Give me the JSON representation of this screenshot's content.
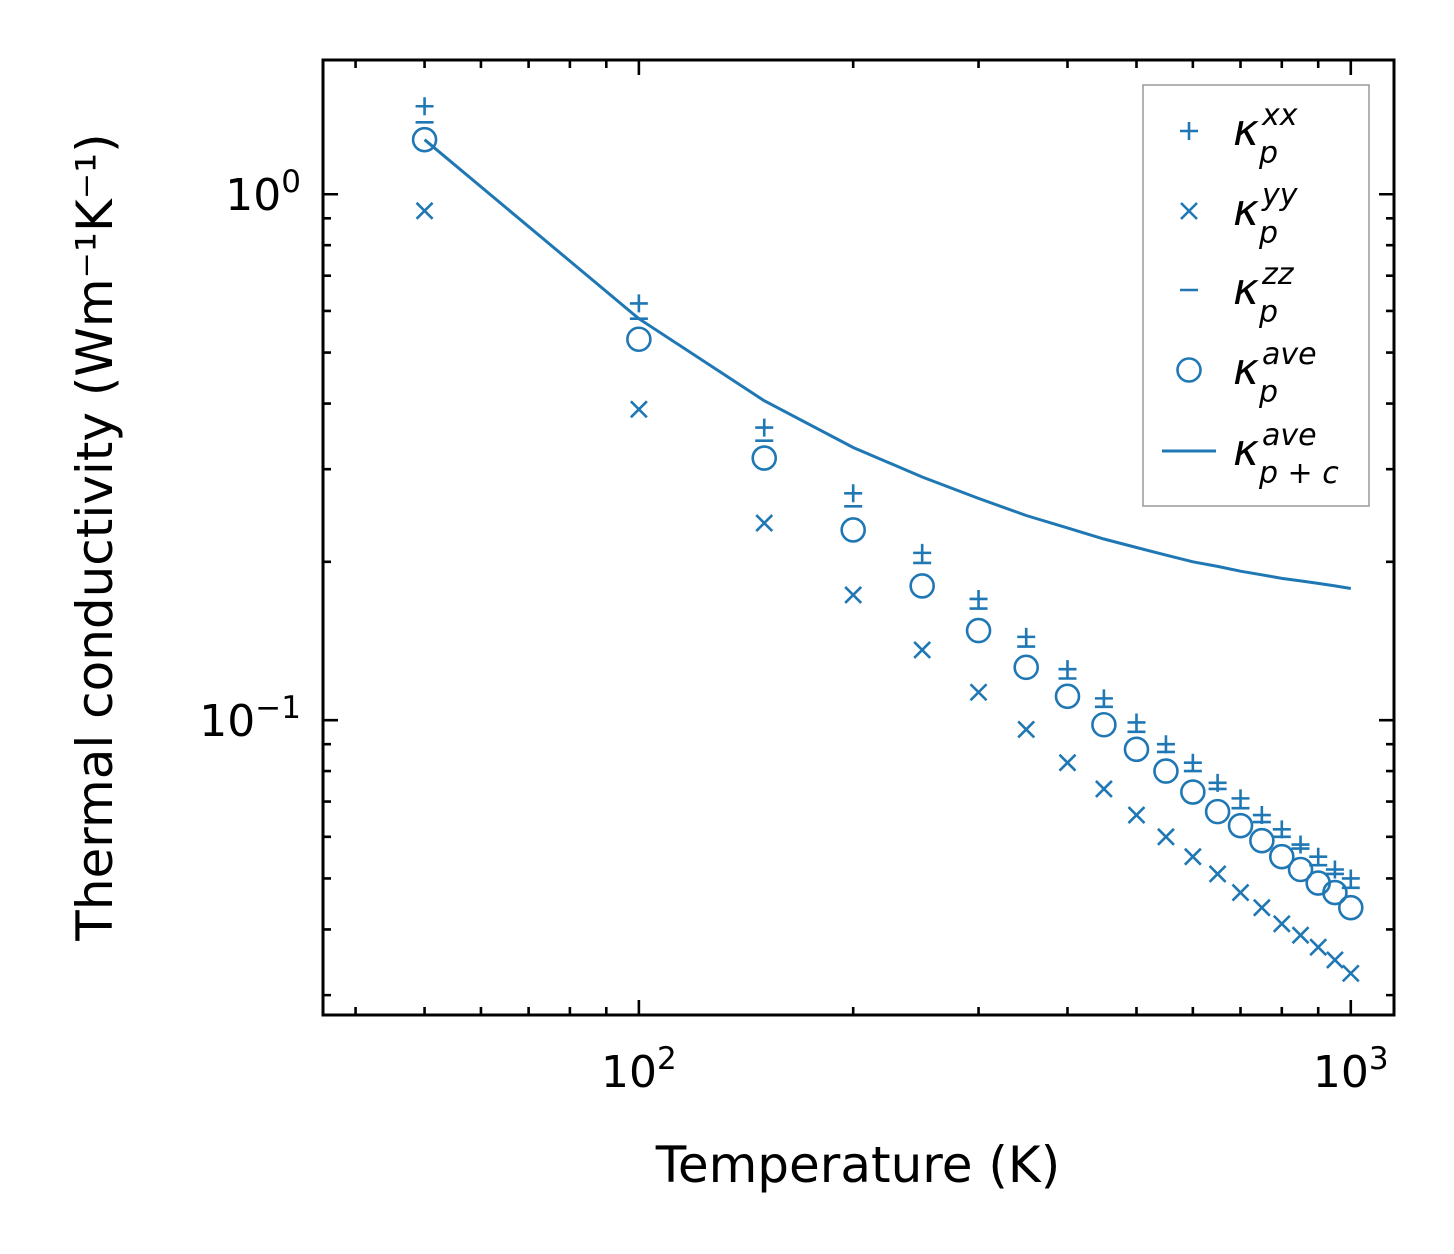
{
  "chart_data": {
    "type": "scatter",
    "xscale": "log",
    "yscale": "log",
    "xlabel": "Temperature (K)",
    "ylabel": "Thermal conductivity (Wm⁻¹K⁻¹)",
    "xlim": [
      36,
      1150
    ],
    "ylim": [
      0.0275,
      1.8
    ],
    "xticks": [
      {
        "value": 100,
        "base": "10",
        "exp": "2"
      },
      {
        "value": 1000,
        "base": "10",
        "exp": "3"
      }
    ],
    "yticks": [
      {
        "value": 0.1,
        "base": "10",
        "exp": "−1"
      },
      {
        "value": 1,
        "base": "10",
        "exp": "0"
      }
    ],
    "grid": false,
    "legend_position": "top-right",
    "color": "#1f77b4",
    "x": [
      50,
      100,
      150,
      200,
      250,
      300,
      350,
      400,
      450,
      500,
      550,
      600,
      650,
      700,
      750,
      800,
      850,
      900,
      950,
      1000
    ],
    "series": [
      {
        "name": "κ",
        "sub": "p",
        "sup": "xx",
        "marker": "plus",
        "values": [
          1.47,
          0.62,
          0.36,
          0.27,
          0.208,
          0.17,
          0.144,
          0.125,
          0.11,
          0.099,
          0.09,
          0.083,
          0.076,
          0.071,
          0.066,
          0.062,
          0.058,
          0.055,
          0.052,
          0.05
        ]
      },
      {
        "name": "κ",
        "sub": "p",
        "sup": "yy",
        "marker": "x",
        "values": [
          0.93,
          0.39,
          0.237,
          0.173,
          0.136,
          0.113,
          0.096,
          0.083,
          0.074,
          0.066,
          0.06,
          0.055,
          0.051,
          0.047,
          0.044,
          0.041,
          0.039,
          0.037,
          0.035,
          0.033
        ]
      },
      {
        "name": "κ",
        "sub": "p",
        "sup": "zz",
        "marker": "dash",
        "values": [
          1.37,
          0.58,
          0.34,
          0.255,
          0.199,
          0.163,
          0.138,
          0.12,
          0.106,
          0.095,
          0.087,
          0.08,
          0.074,
          0.068,
          0.064,
          0.06,
          0.057,
          0.053,
          0.051,
          0.048
        ]
      },
      {
        "name": "κ",
        "sub": "p",
        "sup": "ave",
        "marker": "circle",
        "values": [
          1.27,
          0.53,
          0.315,
          0.23,
          0.18,
          0.148,
          0.126,
          0.111,
          0.098,
          0.088,
          0.08,
          0.073,
          0.067,
          0.063,
          0.059,
          0.055,
          0.052,
          0.049,
          0.047,
          0.044
        ]
      },
      {
        "name": "κ",
        "sub": "p + c",
        "sup": "ave",
        "marker": "line",
        "values": [
          1.27,
          0.58,
          0.405,
          0.33,
          0.29,
          0.264,
          0.245,
          0.232,
          0.221,
          0.213,
          0.206,
          0.2,
          0.196,
          0.192,
          0.189,
          0.186,
          0.184,
          0.182,
          0.18,
          0.178
        ]
      }
    ]
  }
}
